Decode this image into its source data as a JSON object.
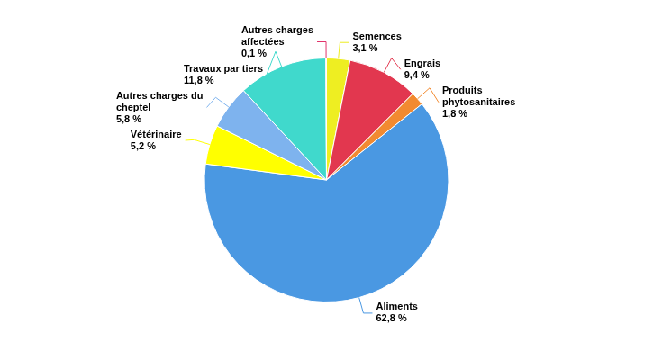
{
  "chart_data": {
    "type": "pie",
    "categories": [
      "Semences",
      "Engrais",
      "Produits phytosanitaires",
      "Aliments",
      "Vétérinaire",
      "Autres charges du cheptel",
      "Travaux par tiers",
      "Autres charges affectées"
    ],
    "values": [
      3.1,
      9.4,
      1.8,
      62.8,
      5.2,
      5.8,
      11.8,
      0.1
    ],
    "value_labels": [
      "3,1 %",
      "9,4 %",
      "1,8 %",
      "62,8 %",
      "5,2 %",
      "5,8 %",
      "11,8 %",
      "0,1 %"
    ],
    "colors": [
      "#eeee22",
      "#e2374f",
      "#f28a30",
      "#4a98e2",
      "#ffff00",
      "#7eb3ee",
      "#40d9cc",
      "#e2336b"
    ],
    "data_labels": true
  }
}
